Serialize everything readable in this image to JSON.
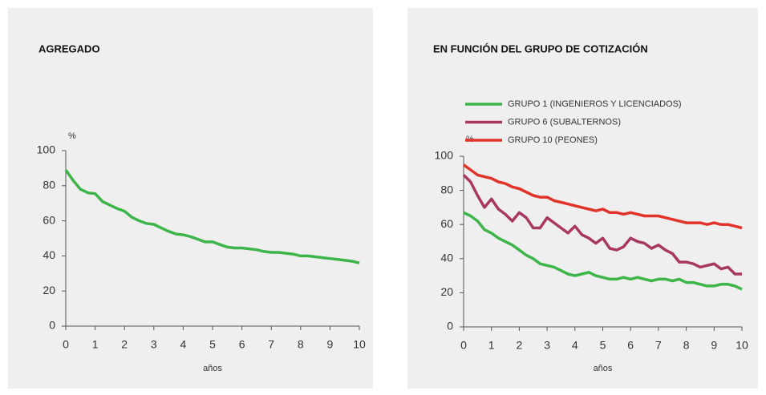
{
  "chart_data": [
    {
      "type": "line",
      "title": "AGREGADO",
      "ylabel": "%",
      "xlabel": "años",
      "x": [
        0,
        0.25,
        0.5,
        0.75,
        1,
        1.25,
        1.5,
        1.75,
        2,
        2.25,
        2.5,
        2.75,
        3,
        3.25,
        3.5,
        3.75,
        4,
        4.25,
        4.5,
        4.75,
        5,
        5.25,
        5.5,
        5.75,
        6,
        6.25,
        6.5,
        6.75,
        7,
        7.25,
        7.5,
        7.75,
        8,
        8.25,
        8.5,
        8.75,
        9,
        9.25,
        9.5,
        9.75,
        10
      ],
      "series": [
        {
          "color": "#3db54a",
          "values": [
            89,
            83,
            78,
            76,
            75.5,
            71,
            69,
            67,
            65.5,
            62,
            60,
            58.5,
            58,
            56,
            54,
            52.5,
            52,
            51,
            49.5,
            48,
            48,
            46.5,
            45,
            44.5,
            44.5,
            44,
            43.5,
            42.5,
            42,
            42,
            41.5,
            41,
            40,
            40,
            39.5,
            39,
            38.5,
            38,
            37.5,
            37,
            36
          ]
        }
      ],
      "xlim": [
        0,
        10
      ],
      "xticks": [
        0,
        1,
        2,
        3,
        4,
        5,
        6,
        7,
        8,
        9,
        10
      ],
      "ylim": [
        0,
        100
      ],
      "yticks": [
        0,
        20,
        40,
        60,
        80,
        100
      ]
    },
    {
      "type": "line",
      "title": "EN FUNCIÓN DEL GRUPO DE COTIZACIÓN",
      "ylabel": "%",
      "xlabel": "años",
      "x": [
        0,
        0.25,
        0.5,
        0.75,
        1,
        1.25,
        1.5,
        1.75,
        2,
        2.25,
        2.5,
        2.75,
        3,
        3.25,
        3.5,
        3.75,
        4,
        4.25,
        4.5,
        4.75,
        5,
        5.25,
        5.5,
        5.75,
        6,
        6.25,
        6.5,
        6.75,
        7,
        7.25,
        7.5,
        7.75,
        8,
        8.25,
        8.5,
        8.75,
        9,
        9.25,
        9.5,
        9.75,
        10
      ],
      "series": [
        {
          "name": "GRUPO 1 (INGENIEROS Y LICENCIADOS)",
          "color": "#3db54a",
          "values": [
            67,
            65,
            62,
            57,
            55,
            52,
            50,
            48,
            45,
            42,
            40,
            37,
            36,
            35,
            33,
            31,
            30,
            31,
            32,
            30,
            29,
            28,
            28,
            29,
            28,
            29,
            28,
            27,
            28,
            28,
            27,
            28,
            26,
            26,
            25,
            24,
            24,
            25,
            25,
            24,
            22
          ]
        },
        {
          "name": "GRUPO 6 (SUBALTERNOS)",
          "color": "#a8385f",
          "values": [
            89,
            85,
            77,
            70,
            75,
            69,
            66,
            62,
            67,
            64,
            58,
            58,
            64,
            61,
            58,
            55,
            59,
            54,
            52,
            49,
            52,
            46,
            45,
            47,
            52,
            50,
            49,
            46,
            48,
            45,
            43,
            38,
            38,
            37,
            35,
            36,
            37,
            34,
            35,
            31,
            31
          ]
        },
        {
          "name": "GRUPO 10 (PEONES)",
          "color": "#e2332a",
          "values": [
            95,
            92,
            89,
            88,
            87,
            85,
            84,
            82,
            81,
            79,
            77,
            76,
            76,
            74,
            73,
            72,
            71,
            70,
            69,
            68,
            69,
            67,
            67,
            66,
            67,
            66,
            65,
            65,
            65,
            64,
            63,
            62,
            61,
            61,
            61,
            60,
            61,
            60,
            60,
            59,
            58
          ]
        }
      ],
      "xlim": [
        0,
        10
      ],
      "xticks": [
        0,
        1,
        2,
        3,
        4,
        5,
        6,
        7,
        8,
        9,
        10
      ],
      "ylim": [
        0,
        100
      ],
      "yticks": [
        0,
        20,
        40,
        60,
        80,
        100
      ]
    }
  ]
}
